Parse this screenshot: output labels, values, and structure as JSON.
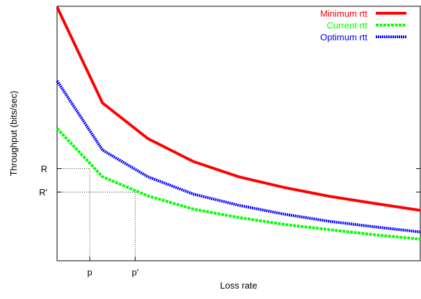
{
  "chart_data": {
    "type": "line",
    "title": "",
    "xlabel": "Loss rate",
    "ylabel": "Throughput (bits/sec)",
    "xlim": [
      0,
      8
    ],
    "ylim": [
      0,
      10
    ],
    "grid": false,
    "legend_position": "top-right",
    "x_ticks": [
      {
        "label": "p",
        "value": 0.72
      },
      {
        "label": "p'",
        "value": 1.72
      }
    ],
    "y_ticks": [
      {
        "label": "R",
        "value": 3.62
      },
      {
        "label": "R'",
        "value": 2.7
      }
    ],
    "guides": [
      {
        "x": 0.72,
        "y": 3.62
      },
      {
        "x": 1.72,
        "y": 2.7
      }
    ],
    "series": [
      {
        "name": "Minimum rtt",
        "color": "#ff0000",
        "style": "solid",
        "x": [
          0,
          1,
          2,
          3,
          4,
          5,
          6,
          7,
          8
        ],
        "y": [
          9.97,
          6.2,
          4.8,
          3.9,
          3.3,
          2.88,
          2.53,
          2.25,
          1.98
        ]
      },
      {
        "name": "Current rtt",
        "color": "#00ff00",
        "style": "dashed",
        "x": [
          0,
          1,
          2,
          3,
          4,
          5,
          6,
          7,
          8
        ],
        "y": [
          5.2,
          3.3,
          2.55,
          2.03,
          1.7,
          1.43,
          1.22,
          1.02,
          0.85
        ]
      },
      {
        "name": "Optimum rtt",
        "color": "#0000ff",
        "style": "dotted",
        "x": [
          0,
          1,
          2,
          3,
          4,
          5,
          6,
          7,
          8
        ],
        "y": [
          7.07,
          4.35,
          3.3,
          2.62,
          2.18,
          1.83,
          1.55,
          1.33,
          1.13
        ]
      }
    ]
  }
}
